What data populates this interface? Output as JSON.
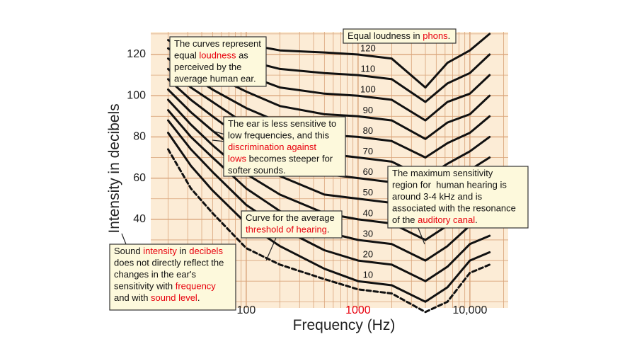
{
  "chart_data": {
    "type": "line",
    "xlabel": "Frequency (Hz)",
    "ylabel": "Intensity in decibels",
    "xscale": "log",
    "xlim": [
      14,
      22000
    ],
    "ylim": [
      -3,
      131
    ],
    "xticks": [
      100,
      1000,
      {
        "value": 10000,
        "label": "10,000"
      }
    ],
    "xtick_colors": [
      "#222222",
      "#e8000d",
      "#222222"
    ],
    "yticks": [
      40,
      60,
      80,
      100,
      120
    ],
    "x_minor_grid": [
      20,
      30,
      40,
      50,
      60,
      70,
      80,
      90,
      200,
      300,
      400,
      500,
      600,
      700,
      800,
      900,
      2000,
      3000,
      4000,
      5000,
      6000,
      7000,
      8000,
      9000,
      20000
    ],
    "y_minor_grid": [
      0,
      10,
      20,
      30,
      50,
      70,
      90,
      110,
      130
    ],
    "grid": true,
    "grid_color": "#d9a47a",
    "plot_background": "#fcecd6",
    "highlight_color": "#e8000d",
    "x": [
      20,
      32,
      50,
      100,
      200,
      500,
      1000,
      2000,
      4000,
      6300,
      10000,
      15000
    ],
    "series": [
      {
        "name": "120",
        "color": "#111111",
        "values": [
          null,
          null,
          128,
          125,
          122,
          121,
          120,
          118,
          104,
          116,
          122,
          130
        ]
      },
      {
        "name": "110",
        "color": "#111111",
        "values": [
          null,
          126,
          122,
          117,
          113,
          111,
          110,
          108,
          97,
          106,
          111,
          120
        ]
      },
      {
        "name": "100",
        "color": "#111111",
        "values": [
          127,
          121,
          116,
          110,
          104,
          101,
          100,
          98,
          88,
          97,
          101,
          110
        ]
      },
      {
        "name": "90",
        "color": "#111111",
        "values": [
          123,
          116,
          110,
          102,
          95,
          91,
          90,
          88,
          79,
          87,
          91,
          100
        ]
      },
      {
        "name": "80",
        "color": "#111111",
        "values": [
          118,
          110,
          103,
          94,
          87,
          81,
          80,
          78,
          70,
          77,
          82,
          90
        ]
      },
      {
        "name": "70",
        "color": "#111111",
        "values": [
          113,
          104,
          97,
          86,
          78,
          72,
          70,
          68,
          60,
          67,
          73,
          80
        ]
      },
      {
        "name": "60",
        "color": "#111111",
        "values": [
          108,
          98,
          90,
          78,
          70,
          62,
          60,
          58,
          50,
          57,
          64,
          70
        ]
      },
      {
        "name": "50",
        "color": "#111111",
        "values": [
          103,
          92,
          83,
          70,
          61,
          52,
          50,
          48,
          40,
          47,
          55,
          60
        ]
      },
      {
        "name": "40",
        "color": "#111111",
        "values": [
          98,
          86,
          76,
          62,
          52,
          43,
          40,
          38,
          30,
          37,
          46,
          50
        ]
      },
      {
        "name": "30",
        "color": "#111111",
        "values": [
          93,
          80,
          70,
          55,
          44,
          34,
          30,
          28,
          20,
          27,
          37,
          41
        ]
      },
      {
        "name": "20",
        "color": "#111111",
        "values": [
          88,
          74,
          63,
          47,
          36,
          25,
          20,
          18,
          10,
          17,
          28,
          32
        ]
      },
      {
        "name": "10",
        "color": "#111111",
        "values": [
          82,
          66,
          54,
          38,
          27,
          16,
          10,
          8,
          0,
          7,
          20,
          24
        ]
      },
      {
        "color": "#111111",
        "dashed": true,
        "values": [
          74,
          55,
          43,
          26,
          18,
          11,
          6,
          4,
          -5,
          0,
          14,
          18
        ]
      }
    ],
    "annotations": [
      {
        "lines": [
          [
            {
              "text": "The curves represent"
            }
          ],
          [
            {
              "text": "equal "
            },
            {
              "text": "loudness",
              "highlight": true
            },
            {
              "text": " as"
            }
          ],
          [
            {
              "text": "perceived by the"
            }
          ],
          [
            {
              "text": "average human ear."
            }
          ]
        ]
      },
      {
        "lines": [
          [
            {
              "text": "Equal loudness in "
            },
            {
              "text": "phons",
              "highlight": true
            },
            {
              "text": "."
            }
          ]
        ]
      },
      {
        "lines": [
          [
            {
              "text": "The ear is less sensitive to"
            }
          ],
          [
            {
              "text": "low frequencies, and this"
            }
          ],
          [
            {
              "text": "discrimination against",
              "highlight": true
            }
          ],
          [
            {
              "text": "lows",
              "highlight": true
            },
            {
              "text": " becomes steeper for"
            }
          ],
          [
            {
              "text": "softer sounds."
            }
          ]
        ]
      },
      {
        "lines": [
          [
            {
              "text": "The maximum sensitivity"
            }
          ],
          [
            {
              "text": "region for  human hearing is"
            }
          ],
          [
            {
              "text": "around 3-4 kHz and is"
            }
          ],
          [
            {
              "text": "associated with the resonance"
            }
          ],
          [
            {
              "text": "of the "
            },
            {
              "text": "auditory canal",
              "highlight": true
            },
            {
              "text": "."
            }
          ]
        ]
      },
      {
        "lines": [
          [
            {
              "text": "Curve for the average"
            }
          ],
          [
            {
              "text": "threshold of hearing",
              "highlight": true
            },
            {
              "text": "."
            }
          ]
        ]
      },
      {
        "lines": [
          [
            {
              "text": "Sound "
            },
            {
              "text": "intensity",
              "highlight": true
            },
            {
              "text": " in "
            },
            {
              "text": "decibels",
              "highlight": true
            }
          ],
          [
            {
              "text": "does not directly reflect the"
            }
          ],
          [
            {
              "text": "changes in the ear's"
            }
          ],
          [
            {
              "text": "sensitivity with "
            },
            {
              "text": "frequency",
              "highlight": true
            }
          ],
          [
            {
              "text": "and with "
            },
            {
              "text": "sound level",
              "highlight": true
            },
            {
              "text": "."
            }
          ]
        ]
      }
    ]
  }
}
